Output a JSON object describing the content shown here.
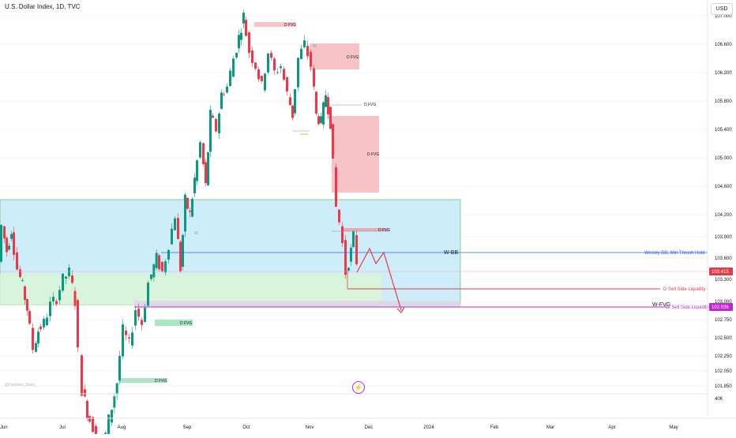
{
  "header": {
    "title": "U.S. Dollar Index, 1D, TVC",
    "currency": "USD"
  },
  "watermark": "@Hashem_Sami_",
  "chart_data": {
    "type": "candlestick",
    "y_ticks": [
      "107.000",
      "106.600",
      "106.200",
      "105.800",
      "105.400",
      "105.000",
      "104.600",
      "104.200",
      "103.900",
      "103.600",
      "103.300",
      "103.000",
      "102.750",
      "102.500",
      "102.250",
      "102.050",
      "101.850"
    ],
    "x_ticks": [
      "Jun",
      "Jul",
      "Aug",
      "Sep",
      "Oct",
      "Nov",
      "Dec",
      "2024",
      "Feb",
      "Mar",
      "Apr",
      "May"
    ],
    "volume_label": "40K",
    "price_tags": [
      {
        "label": "103.415",
        "color": "#e53948"
      },
      {
        "label": "102.936",
        "color": "#c026d3"
      }
    ],
    "annotations": {
      "dfvg": "D FVG",
      "vi": "VI",
      "wbb": "W-BB",
      "wfvg": "W-FVG",
      "weekly_bb": "Weekly BB, Min Thrush Hold -",
      "d_ssl": "D Sell Side Liquidity -",
      "w_ssl": "W Sell Side Liquidity -"
    },
    "colors": {
      "up": "#089981",
      "down": "#f23645",
      "zone_blue": "#cdeef9",
      "zone_green": "#dcf5d6",
      "fvg_red": "#f7c3c6",
      "fvg_green": "#a9e6c2",
      "wbb_line": "#2962ff",
      "ssl_line": "#e53948",
      "wfvg_line": "#c026d3"
    }
  }
}
